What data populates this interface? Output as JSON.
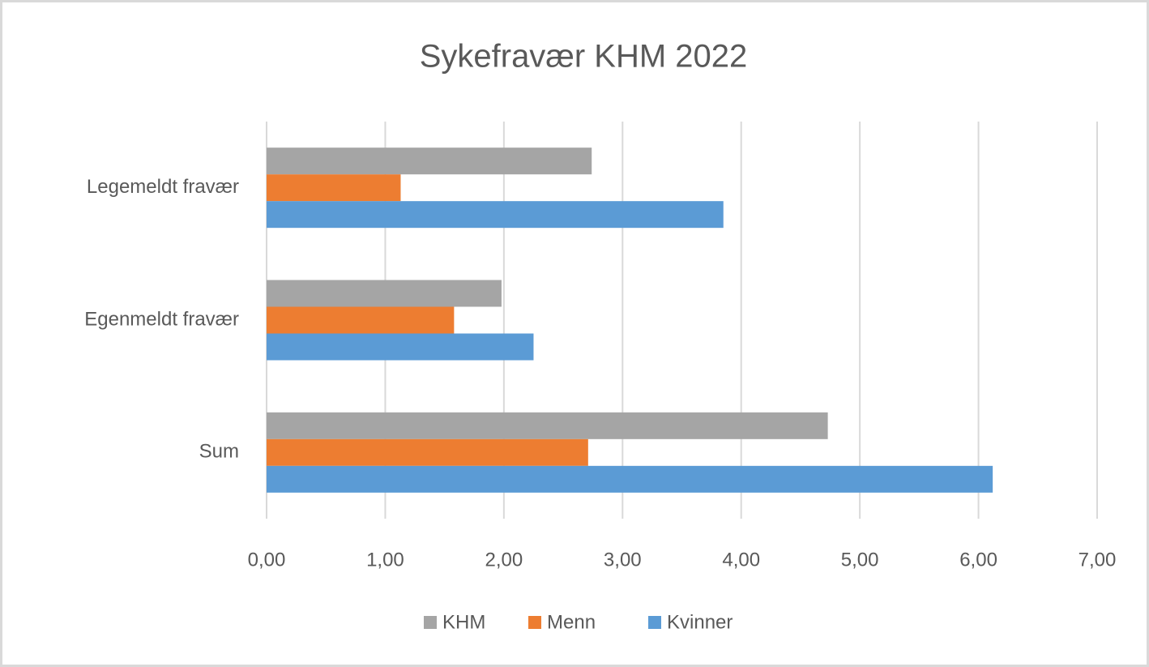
{
  "chart_data": {
    "type": "hbar",
    "title": "Sykefravær KHM 2022",
    "categories": [
      "Legemeldt fravær",
      "Egenmeldt fravær",
      "Sum"
    ],
    "series": [
      {
        "name": "KHM",
        "color": "#a5a5a5",
        "values": [
          2.74,
          1.98,
          4.73
        ]
      },
      {
        "name": "Menn",
        "color": "#ed7d31",
        "values": [
          1.13,
          1.58,
          2.71
        ]
      },
      {
        "name": "Kvinner",
        "color": "#5b9bd5",
        "values": [
          3.85,
          2.25,
          6.12
        ]
      }
    ],
    "xlim": [
      0,
      7
    ],
    "xticks": [
      {
        "value": 0,
        "label": "0,00"
      },
      {
        "value": 1,
        "label": "1,00"
      },
      {
        "value": 2,
        "label": "2,00"
      },
      {
        "value": 3,
        "label": "3,00"
      },
      {
        "value": 4,
        "label": "4,00"
      },
      {
        "value": 5,
        "label": "5,00"
      },
      {
        "value": 6,
        "label": "6,00"
      },
      {
        "value": 7,
        "label": "7,00"
      }
    ],
    "grid": true,
    "legend": "bottom"
  }
}
